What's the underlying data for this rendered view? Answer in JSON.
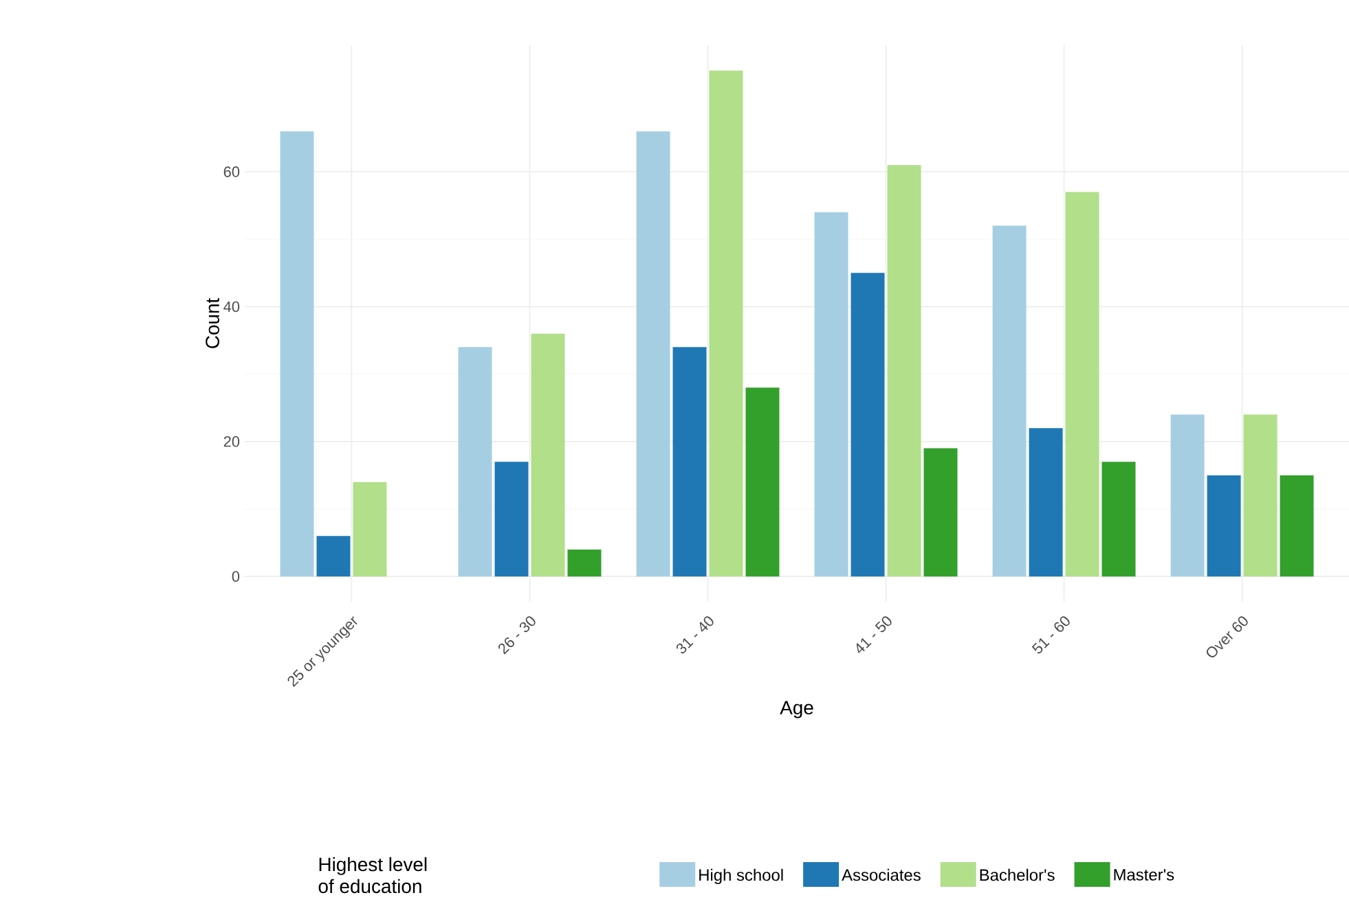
{
  "chart_data": {
    "type": "bar",
    "xlabel": "Age",
    "ylabel": "Count",
    "legend_title": "Highest level\nof education",
    "categories": [
      "25 or younger",
      "26 - 30",
      "31 - 40",
      "41 - 50",
      "51 - 60",
      "Over 60"
    ],
    "series": [
      {
        "name": "High school",
        "color": "#a6cee3",
        "values": [
          66,
          34,
          66,
          54,
          52,
          24
        ]
      },
      {
        "name": "Associates",
        "color": "#1f78b4",
        "values": [
          6,
          17,
          34,
          45,
          22,
          15
        ]
      },
      {
        "name": "Bachelor's",
        "color": "#b2df8a",
        "values": [
          14,
          36,
          75,
          61,
          57,
          24
        ]
      },
      {
        "name": "Master's",
        "color": "#33a02c",
        "values": [
          null,
          4,
          28,
          19,
          17,
          15
        ]
      }
    ],
    "ylim": [
      -3.75,
      78.75
    ],
    "yticks": [
      0,
      20,
      40,
      60
    ],
    "grid": true,
    "legend": "bottom"
  }
}
